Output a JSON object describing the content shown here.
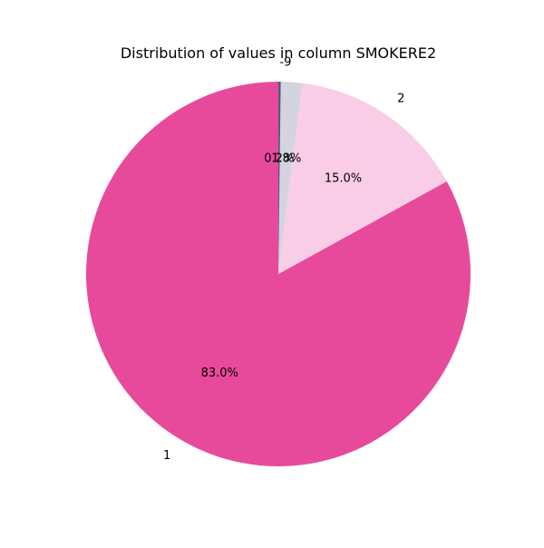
{
  "chart_data": {
    "type": "pie",
    "title": "Distribution of values in column SMOKERE2",
    "start_angle_deg": 90,
    "direction": "counterclockwise",
    "slices": [
      {
        "label": "1",
        "value": 83.0,
        "pct_label": "83.0%",
        "color": "#e84a9b"
      },
      {
        "label": "2",
        "value": 15.0,
        "pct_label": "15.0%",
        "color": "#f9cde6"
      },
      {
        "label": "",
        "value": 1.8,
        "pct_label": "1.8%",
        "color": "#d4d4e0"
      },
      {
        "label": "-9",
        "value": 0.2,
        "pct_label": "0.2%",
        "color": "#5a5a78"
      }
    ]
  }
}
